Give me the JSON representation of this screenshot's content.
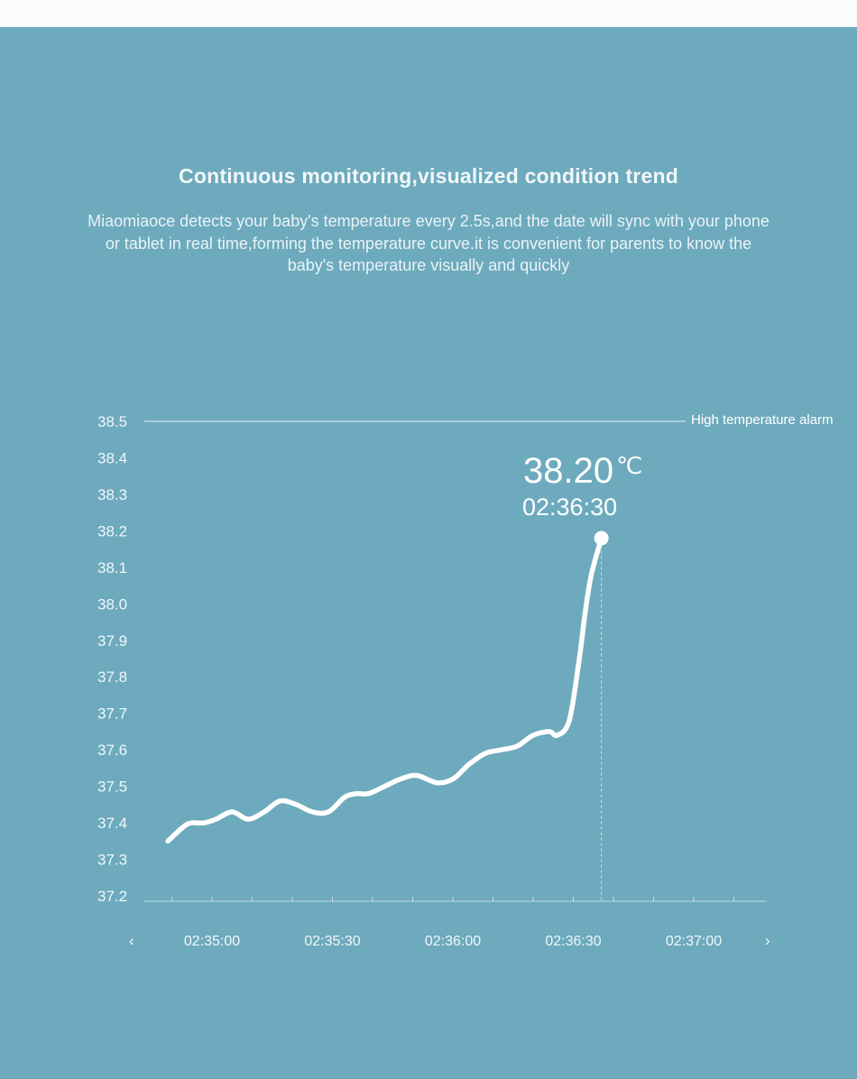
{
  "headline": "Continuous monitoring,visualized condition trend",
  "description": "Miaomiaoce detects your baby's temperature every 2.5s,and the date will sync with your phone or tablet in real time,forming the temperature curve.it is convenient for parents to know the baby's temperature visually and quickly",
  "colors": {
    "background": "#6daabd",
    "curve": "#ffffff",
    "page": "#fbfbfb"
  },
  "chart_data": {
    "type": "line",
    "y_ticks": [
      "38.5",
      "38.4",
      "38.3",
      "38.2",
      "38.1",
      "38.0",
      "37.9",
      "37.8",
      "37.7",
      "37.6",
      "37.5",
      "37.4",
      "37.3",
      "37.2"
    ],
    "ylim": [
      37.2,
      38.5
    ],
    "x_ticks": [
      "02:35:00",
      "02:35:30",
      "02:36:00",
      "02:36:30",
      "02:37:00"
    ],
    "nav_prev": "‹",
    "nav_next": "›",
    "threshold": {
      "value": 38.5,
      "label": "High temperature alarm"
    },
    "series": [
      {
        "x_seconds": [
          -11,
          -7,
          -5,
          -2,
          1,
          5,
          9,
          13,
          17,
          21,
          25,
          29,
          33,
          36,
          39,
          43,
          47,
          51,
          56,
          60,
          64,
          68,
          72,
          76,
          80,
          84,
          86,
          89,
          91.5,
          93,
          94.5,
          97
        ],
        "values": [
          37.35,
          37.39,
          37.4,
          37.4,
          37.41,
          37.43,
          37.41,
          37.43,
          37.46,
          37.45,
          37.43,
          37.43,
          37.47,
          37.48,
          37.48,
          37.5,
          37.52,
          37.53,
          37.51,
          37.52,
          37.56,
          37.59,
          37.6,
          37.61,
          37.64,
          37.65,
          37.64,
          37.68,
          37.85,
          37.98,
          38.08,
          38.18
        ]
      }
    ],
    "highlight": {
      "value": "38.20",
      "unit": "℃",
      "time": "02:36:30"
    }
  }
}
